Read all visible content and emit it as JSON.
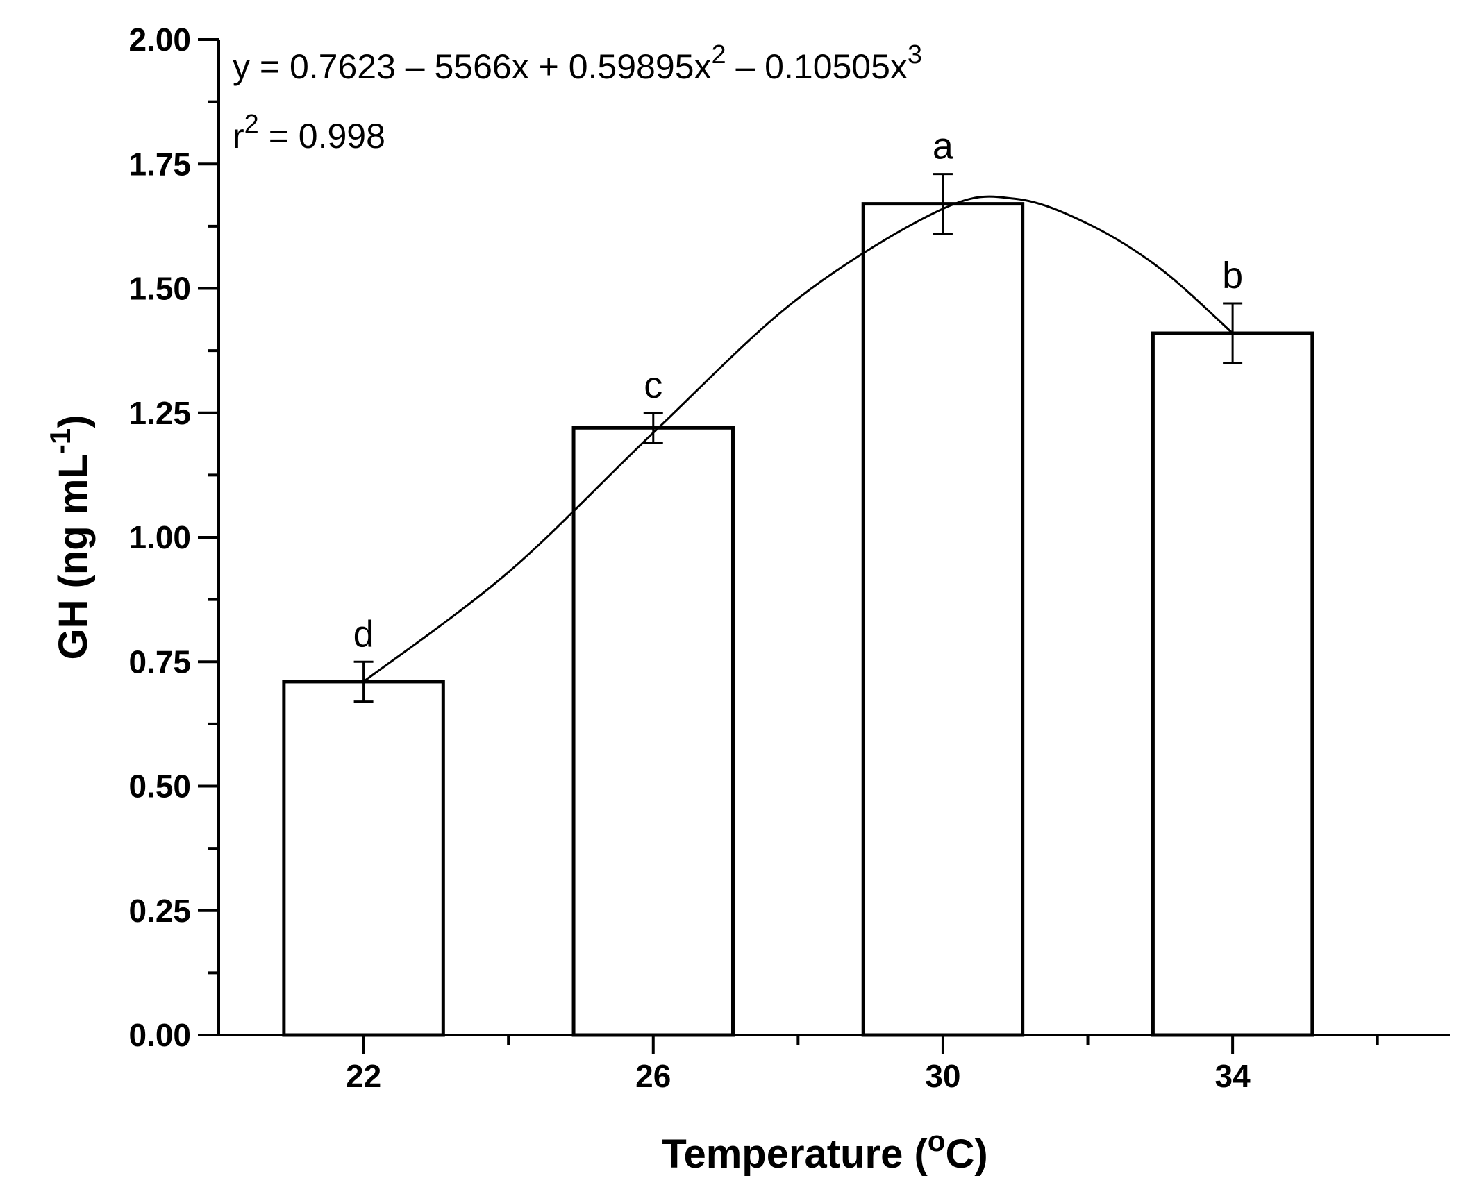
{
  "chart_data": {
    "type": "bar",
    "categories": [
      "22",
      "26",
      "30",
      "34"
    ],
    "x": [
      22,
      26,
      30,
      34
    ],
    "values": [
      0.71,
      1.22,
      1.67,
      1.41
    ],
    "errors": [
      0.04,
      0.03,
      0.06,
      0.06
    ],
    "significance_letters": [
      "d",
      "c",
      "a",
      "b"
    ],
    "xlabel": "Temperature (",
    "xlabel_sup": "o",
    "xlabel_tail": "C)",
    "ylabel": "GH (ng mL",
    "ylabel_sup": "-1",
    "ylabel_tail": ")",
    "xlim": [
      20,
      37
    ],
    "ylim": [
      0,
      2
    ],
    "x_ticks": [
      "22",
      "26",
      "30",
      "34"
    ],
    "y_ticks": [
      "0.00",
      "0.25",
      "0.50",
      "0.75",
      "1.00",
      "1.25",
      "1.50",
      "1.75",
      "2.00"
    ],
    "fit": {
      "type": "cubic",
      "equation_main": "y = 0.7623 – 5566x + 0.59895x",
      "equation_sup1": "2",
      "equation_mid": " – 0.10505x",
      "equation_sup2": "3",
      "r2_label": "r",
      "r2_sup": "2",
      "r2_value": " = 0.998",
      "curve_points": [
        [
          22,
          0.71
        ],
        [
          24,
          0.93
        ],
        [
          26,
          1.21
        ],
        [
          28,
          1.48
        ],
        [
          30,
          1.66
        ],
        [
          31,
          1.68
        ],
        [
          32,
          1.63
        ],
        [
          33,
          1.54
        ],
        [
          34,
          1.41
        ]
      ]
    },
    "grid": false,
    "legend": "none"
  }
}
